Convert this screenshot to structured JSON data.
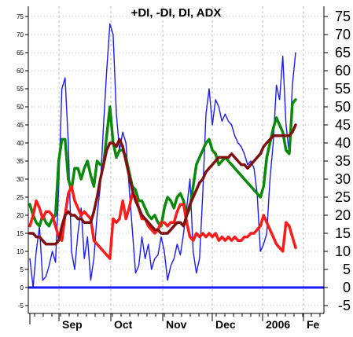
{
  "chart_data": {
    "type": "line",
    "title": "+DI, -DI, DI, ADX",
    "xlabel": "",
    "ylabel": "",
    "ylim": [
      -5,
      80
    ],
    "grid": true,
    "x_tick_labels": [
      "Sep",
      "Oct",
      "Nov",
      "Dec",
      "2006",
      "Fe"
    ],
    "left_tick_labels": [
      "75",
      "70",
      "65",
      "60",
      "55",
      "50",
      "45",
      "40",
      "35",
      "30",
      "25",
      "20",
      "15",
      "10",
      "5",
      "0",
      "-5"
    ],
    "right_tick_labels": [
      "75",
      "70",
      "65",
      "60",
      "55",
      "50",
      "45",
      "40",
      "35",
      "30",
      "25",
      "20",
      "15",
      "10",
      "5",
      "0",
      "-5"
    ],
    "colors": {
      "di": "#1a1aff",
      "plus_di": "#0a8a0a",
      "minus_di": "#ff1a1a",
      "adx": "#801010",
      "zero_line": "#1a1aff",
      "grid": "#b8b8b8"
    },
    "series": [
      {
        "key": "di",
        "values": [
          8,
          0,
          10,
          17,
          2,
          3,
          6,
          10,
          7,
          28,
          55,
          58,
          40,
          10,
          5,
          15,
          22,
          8,
          14,
          2,
          8,
          20,
          28,
          45,
          60,
          73,
          70,
          48,
          38,
          43,
          40,
          28,
          16,
          4,
          6,
          14,
          8,
          12,
          5,
          8,
          9,
          14,
          10,
          2,
          6,
          8,
          12,
          9,
          15,
          22,
          30,
          10,
          4,
          8,
          26,
          48,
          55,
          45,
          52,
          50,
          46,
          48,
          46,
          45,
          42,
          40,
          39,
          37,
          34,
          35,
          33,
          26,
          10,
          12,
          15,
          30,
          40,
          56,
          52,
          64,
          45,
          37,
          56,
          65
        ]
      },
      {
        "key": "plus_di",
        "values": [
          23,
          20,
          18,
          17,
          20,
          18,
          17,
          19,
          20,
          35,
          41,
          41,
          30,
          27,
          33,
          33,
          30,
          33,
          35,
          31,
          28,
          35,
          34,
          34,
          42,
          50,
          40,
          36,
          38,
          38,
          36,
          32,
          28,
          27,
          24,
          24,
          22,
          20,
          19,
          20,
          18,
          17,
          22,
          25,
          24,
          22,
          25,
          26,
          24,
          20,
          22,
          28,
          34,
          36,
          38,
          40,
          41,
          38,
          37,
          34,
          35,
          36,
          35,
          34,
          33,
          32,
          31,
          30,
          29,
          28,
          27,
          26,
          25,
          28,
          36,
          40,
          44,
          47,
          45,
          43,
          38,
          37,
          51,
          52
        ]
      },
      {
        "key": "minus_di",
        "values": [
          17,
          20,
          24,
          22,
          19,
          21,
          21,
          20,
          17,
          14,
          13,
          20,
          26,
          28,
          24,
          22,
          20,
          21,
          20,
          19,
          13,
          12,
          11,
          10,
          9,
          8,
          19,
          18,
          19,
          24,
          19,
          22,
          26,
          25,
          22,
          19,
          19,
          17,
          16,
          15,
          16,
          18,
          18,
          17,
          18,
          18,
          21,
          23,
          23,
          18,
          14,
          13,
          15,
          14,
          15,
          14,
          15,
          14,
          15,
          13,
          14,
          13,
          14,
          13,
          14,
          13,
          13,
          14,
          14,
          15,
          15,
          16,
          17,
          20,
          18,
          16,
          14,
          12,
          11,
          10,
          18,
          17,
          14,
          11
        ]
      },
      {
        "key": "adx",
        "values": [
          15,
          15,
          14,
          14,
          13,
          12,
          12,
          12,
          12,
          13,
          17,
          20,
          21,
          20,
          20,
          19,
          19,
          18,
          18,
          18,
          21,
          25,
          30,
          34,
          38,
          40,
          40,
          39,
          41,
          39,
          35,
          31,
          27,
          24,
          22,
          20,
          19,
          18,
          17,
          16,
          16,
          15,
          15,
          15,
          16,
          17,
          18,
          18,
          17,
          20,
          23,
          25,
          27,
          29,
          30,
          32,
          33,
          34,
          35,
          36,
          36,
          36,
          36,
          37,
          36,
          35,
          34,
          34,
          33,
          34,
          35,
          36,
          37,
          39,
          40,
          41,
          42,
          42,
          42,
          42,
          42,
          42,
          43,
          45
        ]
      }
    ]
  }
}
